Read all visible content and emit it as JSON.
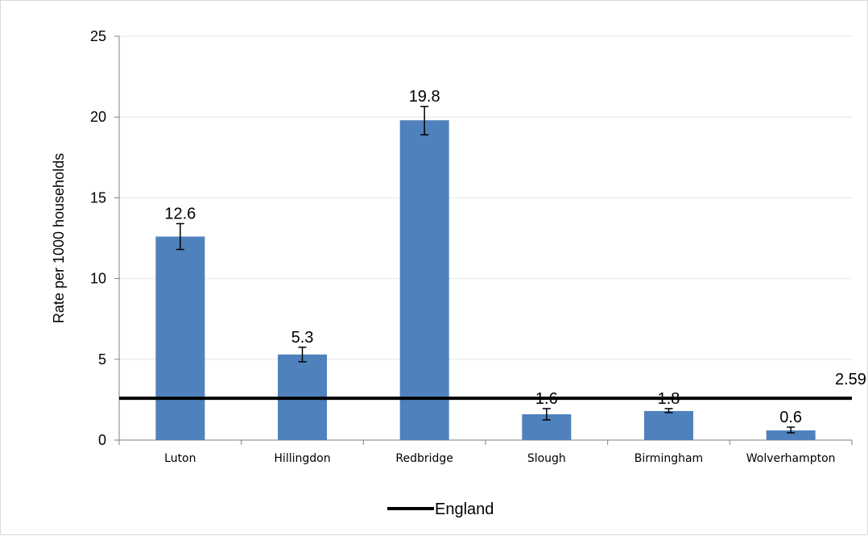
{
  "chart_data": {
    "type": "bar",
    "categories": [
      "Luton",
      "Hillingdon",
      "Redbridge",
      "Slough",
      "Birmingham",
      "Wolverhampton"
    ],
    "values": [
      12.6,
      5.3,
      19.8,
      1.6,
      1.8,
      0.6
    ],
    "value_labels": [
      "12.6",
      "5.3",
      "19.8",
      "1.6",
      "1.8",
      "0.6"
    ],
    "error_bars": [
      {
        "low": 11.8,
        "high": 13.4
      },
      {
        "low": 4.85,
        "high": 5.75
      },
      {
        "low": 18.9,
        "high": 20.65
      },
      {
        "low": 1.25,
        "high": 1.95
      },
      {
        "low": 1.7,
        "high": 1.95
      },
      {
        "low": 0.45,
        "high": 0.8
      }
    ],
    "reference_line": {
      "name": "England",
      "value": 2.59,
      "label": "2.59",
      "color": "#000000"
    },
    "ylabel": "Rate per 1000 households",
    "ylim": [
      0,
      25
    ],
    "yticks": [
      0,
      5,
      10,
      15,
      20,
      25
    ],
    "grid": true,
    "legend_position": "bottom",
    "bar_color": "#4F81BD",
    "grid_color": "#e6e6e6"
  }
}
